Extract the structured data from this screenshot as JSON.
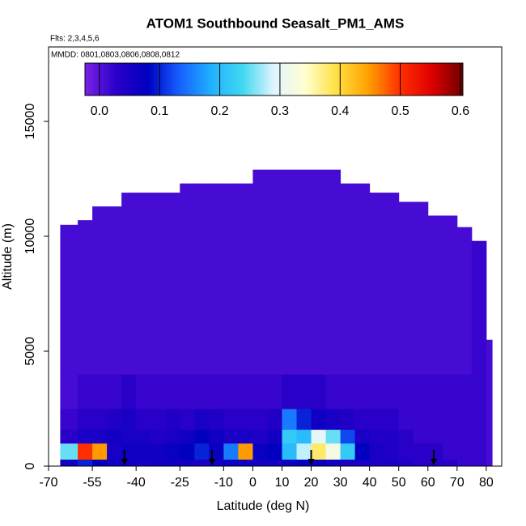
{
  "chart_data": {
    "type": "heatmap",
    "title": "ATOM1 Southbound Seasalt_PM1_AMS",
    "subtitle": "Flts: 2,3,4,5,6",
    "annotation": "MMDD: 0801,0803,0806,0808,0812",
    "xlabel": "Latitude (deg N)",
    "ylabel": "Altitude (m)",
    "xlim": [
      -70,
      85.3
    ],
    "ylim": [
      0,
      18240
    ],
    "xticks": [
      -70,
      -55,
      -40,
      -25,
      -10,
      0,
      10,
      20,
      30,
      40,
      50,
      60,
      70,
      80
    ],
    "yticks": [
      0,
      5000,
      10000,
      15000
    ],
    "clim": [
      -0.024,
      0.604
    ],
    "cticks": [
      {
        "value": 0,
        "label": "0.0"
      },
      0.1,
      0.2,
      0.3,
      0.4,
      0.5,
      0.6
    ],
    "colors": [
      "#7b22e6",
      "#2a00c8",
      "#0000c0",
      "#1560ff",
      "#20b0ff",
      "#40d8f0",
      "#e0f4ff",
      "#ffffd0",
      "#ffe040",
      "#ffa000",
      "#ff3000",
      "#e00000",
      "#700000"
    ],
    "x_edges": [
      -66,
      -60,
      -55,
      -50,
      -45,
      -40,
      -35,
      -30,
      -25,
      -20,
      -15,
      -10,
      -5,
      0,
      5,
      10,
      15,
      20,
      25,
      30,
      35,
      40,
      45,
      50,
      55,
      60,
      65,
      70,
      75,
      80,
      82
    ],
    "y_edges": [
      0,
      300,
      1000,
      1600,
      2500,
      4000
    ],
    "tops": [
      10500,
      10700,
      11300,
      11300,
      11900,
      11900,
      11900,
      11900,
      12300,
      12300,
      12300,
      12300,
      12300,
      12900,
      12900,
      12900,
      12900,
      12900,
      12900,
      12300,
      12300,
      11900,
      11900,
      11500,
      11500,
      10900,
      10900,
      10400,
      9800,
      5500
    ],
    "values": [
      [
        0.06,
        0.25,
        0.03,
        0.02,
        0.01,
        0.01
      ],
      [
        0.1,
        0.5,
        0.05,
        0.03,
        0.02,
        0.01
      ],
      [
        0.08,
        0.45,
        0.05,
        0.03,
        0.02,
        0.01
      ],
      [
        0.06,
        0.05,
        0.06,
        0.04,
        0.02,
        0.01
      ],
      [
        0.06,
        0.06,
        0.05,
        0.05,
        0.03,
        0.01
      ],
      [
        0.05,
        0.06,
        0.05,
        0.03,
        0.02,
        0.01
      ],
      [
        0.06,
        0.06,
        0.04,
        0.03,
        0.02,
        0.01
      ],
      [
        0.06,
        0.07,
        0.05,
        0.04,
        0.02,
        0.01
      ],
      [
        0.06,
        0.08,
        0.06,
        0.03,
        0.02,
        0.01
      ],
      [
        0.05,
        0.1,
        0.08,
        0.05,
        0.02,
        0.01
      ],
      [
        0.06,
        0.07,
        0.06,
        0.04,
        0.02,
        0.01
      ],
      [
        0.07,
        0.15,
        0.05,
        0.03,
        0.02,
        0.01
      ],
      [
        0.06,
        0.45,
        0.05,
        0.03,
        0.02,
        0.01
      ],
      [
        0.06,
        0.07,
        0.04,
        0.03,
        0.02,
        0.01
      ],
      [
        0.06,
        0.08,
        0.06,
        0.04,
        0.02,
        0.01
      ],
      [
        0.07,
        0.2,
        0.22,
        0.15,
        0.03,
        0.01
      ],
      [
        0.08,
        0.28,
        0.2,
        0.1,
        0.03,
        0.01
      ],
      [
        0.07,
        0.38,
        0.3,
        0.06,
        0.03,
        0.01
      ],
      [
        0.06,
        0.32,
        0.25,
        0.05,
        0.02,
        0.01
      ],
      [
        0.05,
        0.22,
        0.12,
        0.04,
        0.02,
        0.01
      ],
      [
        0.05,
        0.08,
        0.05,
        0.03,
        0.02,
        0.01
      ],
      [
        0.05,
        0.05,
        0.04,
        0.03,
        0.02,
        0.01
      ],
      [
        0.05,
        0.04,
        0.04,
        0.03,
        0.02,
        0.01
      ],
      [
        0.04,
        0.03,
        0.03,
        0.02,
        0.02,
        0.01
      ],
      [
        0.03,
        0.03,
        0.02,
        0.02,
        0.02,
        0.01
      ],
      [
        0.03,
        0.03,
        0.02,
        0.02,
        0.02,
        0.01
      ],
      [
        0.03,
        0.02,
        0.02,
        0.02,
        0.02,
        0.01
      ],
      [
        0.02,
        0.02,
        0.02,
        0.02,
        0.02,
        0.01
      ],
      [
        0.02,
        0.02,
        0.02,
        0.02,
        0.02,
        0.02
      ],
      [
        0.01,
        0.01,
        0.01,
        0.01,
        0.01,
        0.01
      ]
    ],
    "arrows": [
      -44,
      -14,
      20,
      62
    ]
  }
}
